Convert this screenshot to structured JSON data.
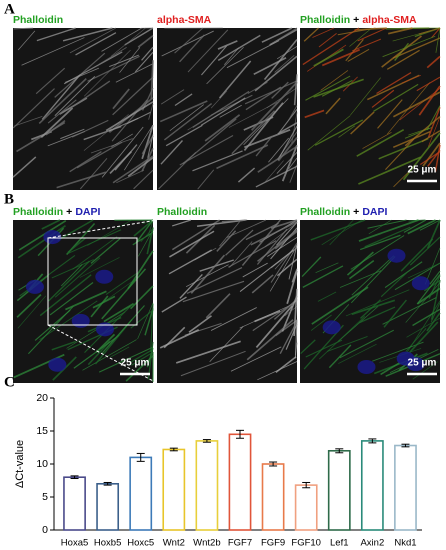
{
  "figure": {
    "panels": [
      {
        "label": "A",
        "scale_bar": "25 μm",
        "images": [
          {
            "title": [
              "Phalloidin"
            ],
            "title_colors": [
              "#22a022"
            ]
          },
          {
            "title": [
              "alpha-SMA"
            ],
            "title_colors": [
              "#e02020"
            ]
          },
          {
            "title": [
              "Phalloidin",
              "+",
              "alpha-SMA"
            ],
            "title_colors": [
              "#22a022",
              "#000000",
              "#e02020"
            ]
          }
        ]
      },
      {
        "label": "B",
        "scale_bar": "25 μm",
        "images": [
          {
            "title": [
              "Phalloidin",
              "+",
              "DAPI"
            ],
            "title_colors": [
              "#22a022",
              "#000000",
              "#2020b0"
            ]
          },
          {
            "title": [
              "Phalloidin"
            ],
            "title_colors": [
              "#22a022"
            ]
          },
          {
            "title": [
              "Phalloidin",
              "+",
              "DAPI"
            ],
            "title_colors": [
              "#22a022",
              "#000000",
              "#2020b0"
            ]
          }
        ]
      }
    ]
  },
  "chart_data": {
    "type": "bar",
    "panel_label": "C",
    "ylabel": "ΔCt-value",
    "categories": [
      "Hoxa5",
      "Hoxb5",
      "Hoxc5",
      "Wnt2",
      "Wnt2b",
      "FGF7",
      "FGF9",
      "FGF10",
      "Lef1",
      "Axin2",
      "Nkd1"
    ],
    "values": [
      8.0,
      7.0,
      11.0,
      12.2,
      13.5,
      14.5,
      10.0,
      6.8,
      12.0,
      13.5,
      12.8
    ],
    "errors": [
      0.2,
      0.2,
      0.6,
      0.2,
      0.2,
      0.6,
      0.3,
      0.4,
      0.3,
      0.3,
      0.2
    ],
    "colors": [
      "#4a4a8a",
      "#3b5f8a",
      "#3d7ab8",
      "#e8c52a",
      "#e8cf3a",
      "#e0553a",
      "#e87a4a",
      "#f0a080",
      "#2e6b4a",
      "#2a8a7a",
      "#9ab8c8"
    ],
    "ylim": [
      0,
      20
    ],
    "yticks": [
      0,
      5,
      10,
      15,
      20
    ]
  }
}
